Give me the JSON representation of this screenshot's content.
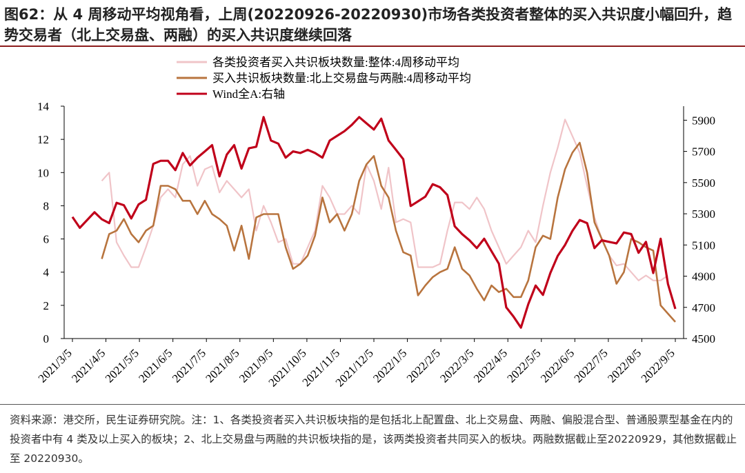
{
  "title": "图62：从 4 周移动平均视角看，上周(20220926-20220930)市场各类投资者整体的买入共识度小幅回升，趋势交易者（北上交易盘、两融）的买入共识度继续回落",
  "source": "资料来源：港交所，民生证券研究院。注：1、各类投资者买入共识板块指的是包括北上配置盘、北上交易盘、两融、偏股混合型、普通股票型基金在内的投资者中有 4 类及以上买入的板块；2、北上交易盘与两融的共识板块指的是，该两类投资者共同买入的板块。两融数据截止至20220929，其他数据截止至 20220930。",
  "colors": {
    "overall": "#f0c4c8",
    "north_margin": "#b8743e",
    "wind": "#c0001a"
  },
  "chart_data": {
    "type": "line",
    "x_tick_labels": [
      "2021/3/5",
      "2021/4/5",
      "2021/5/5",
      "2021/6/5",
      "2021/7/5",
      "2021/8/5",
      "2021/9/5",
      "2021/10/5",
      "2021/11/5",
      "2021/12/5",
      "2022/1/5",
      "2022/2/5",
      "2022/3/5",
      "2022/4/5",
      "2022/5/5",
      "2022/6/5",
      "2022/7/5",
      "2022/8/5",
      "2022/9/5"
    ],
    "y_left": {
      "ticks": [
        "0",
        "2",
        "4",
        "6",
        "8",
        "10",
        "12",
        "14"
      ],
      "ylim": [
        0,
        14
      ]
    },
    "y_right": {
      "ticks": [
        "4500",
        "4700",
        "4900",
        "5100",
        "5300",
        "5500",
        "5700",
        "5900"
      ],
      "ylim": [
        4500,
        5990
      ]
    },
    "series": [
      {
        "name": "各类投资者买入共识板块数量:整体:4周移动平均",
        "axis": "left",
        "start_index": 4,
        "values": [
          9.5,
          10.0,
          5.8,
          5.0,
          4.3,
          4.3,
          5.5,
          6.8,
          8.5,
          9.0,
          8.5,
          10.5,
          11.0,
          9.2,
          10.2,
          10.4,
          8.8,
          9.5,
          9.0,
          8.5,
          9.0,
          6.5,
          8.0,
          7.0,
          5.8,
          6.0,
          4.5,
          4.5,
          5.5,
          6.5,
          9.2,
          8.5,
          7.5,
          7.5,
          8.0,
          7.5,
          10.5,
          9.5,
          7.8,
          10.3,
          7.0,
          7.2,
          7.0,
          4.3,
          4.3,
          4.3,
          4.5,
          6.5,
          8.2,
          8.2,
          7.8,
          8.5,
          7.8,
          6.5,
          5.5,
          4.5,
          5.0,
          5.5,
          6.5,
          5.8,
          8.0,
          10.0,
          11.5,
          13.2,
          12.2,
          11.2,
          9.2,
          7.3,
          6.0,
          5.0,
          4.4,
          4.5,
          4.0,
          3.5,
          3.8,
          3.5,
          3.5,
          3.8
        ]
      },
      {
        "name": "买入共识板块数量:北上交易盘与两融:4周移动平均",
        "axis": "left",
        "start_index": 4,
        "values": [
          4.8,
          6.3,
          6.5,
          7.2,
          6.3,
          5.8,
          6.5,
          6.8,
          9.2,
          9.2,
          9.0,
          8.3,
          8.3,
          7.5,
          8.3,
          7.5,
          7.2,
          6.8,
          5.3,
          6.8,
          4.8,
          7.3,
          7.5,
          7.5,
          7.5,
          5.5,
          4.2,
          4.5,
          5.0,
          6.2,
          8.5,
          7.0,
          7.5,
          6.5,
          7.5,
          9.5,
          10.5,
          11.0,
          9.2,
          8.5,
          6.5,
          5.2,
          5.0,
          2.6,
          3.2,
          3.7,
          4.0,
          4.2,
          5.5,
          4.2,
          3.8,
          3.0,
          2.3,
          3.2,
          2.8,
          3.0,
          2.5,
          2.5,
          3.5,
          5.5,
          6.2,
          6.0,
          8.5,
          10.2,
          11.2,
          11.8,
          10.0,
          7.0,
          6.0,
          5.0,
          3.3,
          4.0,
          6.0,
          5.8,
          5.5,
          5.3,
          2.0,
          1.5,
          1.0
        ]
      },
      {
        "name": "Wind全A:右轴",
        "axis": "right",
        "start_index": 0,
        "values": [
          5280,
          5210,
          5260,
          5310,
          5265,
          5240,
          5370,
          5355,
          5270,
          5360,
          5390,
          5620,
          5640,
          5640,
          5580,
          5690,
          5610,
          5660,
          5700,
          5740,
          5540,
          5680,
          5740,
          5590,
          5720,
          5730,
          5920,
          5770,
          5750,
          5660,
          5700,
          5690,
          5710,
          5690,
          5660,
          5770,
          5800,
          5830,
          5870,
          5920,
          5880,
          5840,
          5910,
          5770,
          5710,
          5650,
          5350,
          5380,
          5410,
          5490,
          5470,
          5420,
          5220,
          5170,
          5130,
          5080,
          5140,
          5060,
          4980,
          4700,
          4640,
          4570,
          4720,
          4840,
          4780,
          4920,
          5030,
          5100,
          5190,
          5260,
          5240,
          5080,
          5130,
          5120,
          5110,
          5180,
          5170,
          5050,
          5120,
          4920,
          5140,
          4850,
          4690
        ]
      }
    ],
    "legend": "top-left",
    "grid": false
  }
}
